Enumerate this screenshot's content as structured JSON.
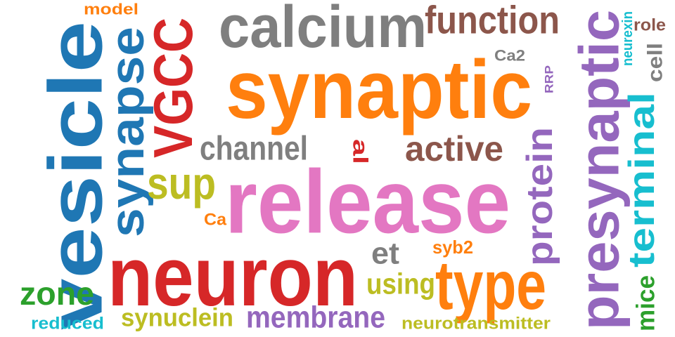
{
  "words": [
    {
      "text": "vesicle",
      "color": "#1f77b4"
    },
    {
      "text": "model",
      "color": "#ff7f0e"
    },
    {
      "text": "synapse",
      "color": "#1f77b4"
    },
    {
      "text": "VGCC",
      "color": "#d62728"
    },
    {
      "text": "calcium",
      "color": "#7f7f7f"
    },
    {
      "text": "function",
      "color": "#8c564b"
    },
    {
      "text": "presynaptic",
      "color": "#9467bd"
    },
    {
      "text": "neurexin",
      "color": "#17becf"
    },
    {
      "text": "role",
      "color": "#8c564b"
    },
    {
      "text": "cell",
      "color": "#7f7f7f"
    },
    {
      "text": "Ca2",
      "color": "#7f7f7f"
    },
    {
      "text": "RRP",
      "color": "#9467bd"
    },
    {
      "text": "synaptic",
      "color": "#ff7f0e"
    },
    {
      "text": "channel",
      "color": "#7f7f7f"
    },
    {
      "text": "al",
      "color": "#d62728"
    },
    {
      "text": "active",
      "color": "#8c564b"
    },
    {
      "text": "protein",
      "color": "#9467bd"
    },
    {
      "text": "terminal",
      "color": "#17becf"
    },
    {
      "text": "sup",
      "color": "#bcbd22"
    },
    {
      "text": "release",
      "color": "#e377c2"
    },
    {
      "text": "Ca",
      "color": "#ff7f0e"
    },
    {
      "text": "neuron",
      "color": "#d62728"
    },
    {
      "text": "et",
      "color": "#7f7f7f"
    },
    {
      "text": "syb2",
      "color": "#ff7f0e"
    },
    {
      "text": "type",
      "color": "#ff7f0e"
    },
    {
      "text": "using",
      "color": "#bcbd22"
    },
    {
      "text": "mice",
      "color": "#2ca02c"
    },
    {
      "text": "zone",
      "color": "#2ca02c"
    },
    {
      "text": "synuclein",
      "color": "#bcbd22"
    },
    {
      "text": "membrane",
      "color": "#9467bd"
    },
    {
      "text": "reduced",
      "color": "#17becf"
    },
    {
      "text": "neurotransmitter",
      "color": "#bcbd22"
    }
  ]
}
